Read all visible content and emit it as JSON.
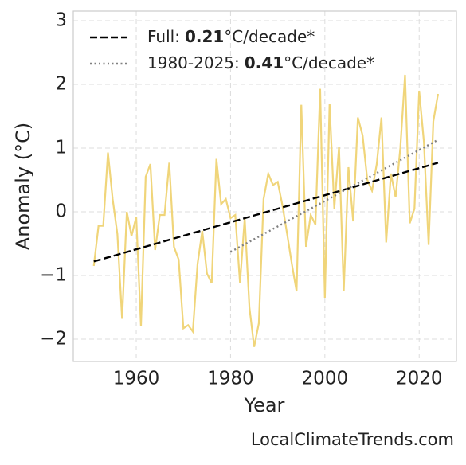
{
  "chart_data": {
    "type": "line",
    "xlabel": "Year",
    "ylabel": "Anomaly (°C)",
    "watermark": "LocalClimateTrends.com",
    "xlim": [
      1946.65,
      2027.9
    ],
    "ylim": [
      -2.35,
      3.15
    ],
    "xticks": [
      1960,
      1980,
      2000,
      2020
    ],
    "yticks": [
      {
        "value": -2,
        "label": "−2"
      },
      {
        "value": -1,
        "label": "−1"
      },
      0,
      1,
      2,
      3
    ],
    "grid": true,
    "legend": "upper left",
    "series": [
      {
        "color": "#f0d57a",
        "x": [
          1951,
          1952,
          1953,
          1954,
          1955,
          1956,
          1957,
          1958,
          1959,
          1960,
          1961,
          1962,
          1963,
          1964,
          1965,
          1966,
          1967,
          1968,
          1969,
          1970,
          1971,
          1972,
          1973,
          1974,
          1975,
          1976,
          1977,
          1978,
          1979,
          1980,
          1981,
          1982,
          1983,
          1984,
          1985,
          1986,
          1987,
          1988,
          1989,
          1990,
          1991,
          1992,
          1993,
          1994,
          1995,
          1996,
          1997,
          1998,
          1999,
          2000,
          2001,
          2002,
          2003,
          2004,
          2005,
          2006,
          2007,
          2008,
          2009,
          2010,
          2011,
          2012,
          2013,
          2014,
          2015,
          2016,
          2017,
          2018,
          2019,
          2020,
          2021,
          2022,
          2023,
          2024
        ],
        "values": [
          -0.85,
          -0.22,
          -0.22,
          0.93,
          0.2,
          -0.35,
          -1.68,
          0.0,
          -0.38,
          -0.08,
          -1.8,
          0.55,
          0.75,
          -0.6,
          -0.05,
          -0.05,
          0.77,
          -0.55,
          -0.75,
          -1.83,
          -1.78,
          -1.88,
          -0.82,
          -0.3,
          -0.97,
          -1.12,
          0.83,
          0.12,
          0.2,
          -0.1,
          -0.05,
          -1.12,
          -0.1,
          -1.5,
          -2.12,
          -1.75,
          0.2,
          0.6,
          0.42,
          0.47,
          0.1,
          -0.35,
          -0.82,
          -1.25,
          1.68,
          -0.55,
          -0.05,
          -0.2,
          1.93,
          -1.35,
          1.7,
          0.05,
          1.02,
          -1.25,
          0.7,
          -0.15,
          1.48,
          1.2,
          0.5,
          0.33,
          0.75,
          1.48,
          -0.48,
          0.6,
          0.23,
          1.0,
          2.15,
          -0.18,
          0.05,
          1.9,
          1.1,
          -0.52,
          1.42,
          1.85
        ]
      },
      {
        "name": "Full:",
        "slope": 0.21,
        "unit": "°C/decade*",
        "color": "#000000",
        "dash": "dashed",
        "x": [
          1951,
          2024
        ],
        "values": [
          -0.78,
          0.77
        ]
      },
      {
        "name": "1980-2025:",
        "slope": 0.41,
        "unit": "°C/decade*",
        "color": "#808080",
        "dash": "dotted",
        "x": [
          1980,
          2024
        ],
        "values": [
          -0.63,
          1.13
        ]
      }
    ]
  }
}
